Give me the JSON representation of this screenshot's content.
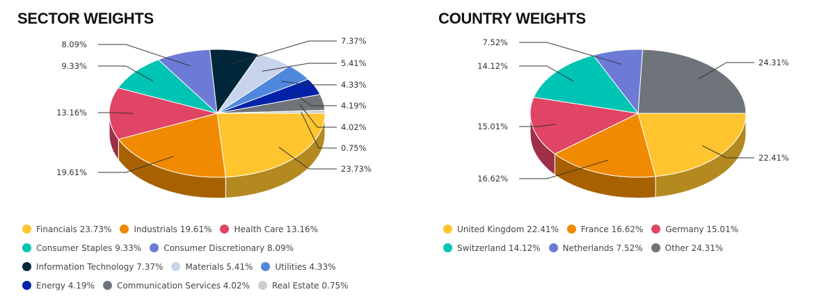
{
  "chart_data": [
    {
      "type": "pie",
      "title": "SECTOR WEIGHTS",
      "categories": [
        "Financials",
        "Industrials",
        "Health Care",
        "Consumer Staples",
        "Consumer Discretionary",
        "Information Technology",
        "Materials",
        "Utilities",
        "Energy",
        "Communication Services",
        "Real Estate"
      ],
      "values": [
        23.73,
        19.61,
        13.16,
        9.33,
        8.09,
        7.37,
        5.41,
        4.33,
        4.19,
        4.02,
        0.75
      ],
      "data_labels": [
        "23.73%",
        "19.61%",
        "13.16%",
        "9.33%",
        "8.09%",
        "7.37%",
        "5.41%",
        "4.33%",
        "4.19%",
        "4.02%",
        "0.75%"
      ],
      "legend_labels": [
        "Financials 23.73%",
        "Industrials 19.61%",
        "Health Care 13.16%",
        "Consumer Staples 9.33%",
        "Consumer Discretionary 8.09%",
        "Information Technology 7.37%",
        "Materials 5.41%",
        "Utilities 4.33%",
        "Energy 4.19%",
        "Communication Services 4.02%",
        "Real Estate 0.75%"
      ],
      "colors": [
        "#FFC42E",
        "#F08A00",
        "#E04566",
        "#00C4B3",
        "#6E7BD6",
        "#00263A",
        "#C8D4EC",
        "#4F87DC",
        "#0022A8",
        "#6E7479",
        "#CCCED1"
      ],
      "legend": "bottom"
    },
    {
      "type": "pie",
      "title": "COUNTRY WEIGHTS",
      "categories": [
        "United Kingdom",
        "France",
        "Germany",
        "Switzerland",
        "Netherlands",
        "Other"
      ],
      "values": [
        22.41,
        16.62,
        15.01,
        14.12,
        7.52,
        24.31
      ],
      "data_labels": [
        "22.41%",
        "16.62%",
        "15.01%",
        "14.12%",
        "7.52%",
        "24.31%"
      ],
      "legend_labels": [
        "United Kingdom 22.41%",
        "France 16.62%",
        "Germany 15.01%",
        "Switzerland 14.12%",
        "Netherlands 7.52%",
        "Other 24.31%"
      ],
      "colors": [
        "#FFC42E",
        "#F08A00",
        "#E04566",
        "#00C4B3",
        "#6E7BD6",
        "#6E7479"
      ],
      "legend": "bottom"
    }
  ]
}
